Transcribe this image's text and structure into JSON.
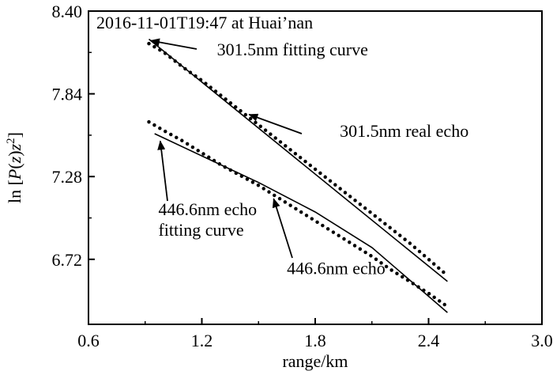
{
  "chart_data": {
    "type": "line",
    "title": "2016-11-01T19:47 at Huai’nan",
    "xlabel": "range/km",
    "ylabel": {
      "prefix": "ln [",
      "p": "P",
      "mid": "(",
      "z1": "z",
      "close": ")",
      "z2": "z",
      "exp": "2",
      "suffix": "]"
    },
    "xlim": [
      0.6,
      3.0
    ],
    "ylim": [
      6.28,
      8.4
    ],
    "xticks": [
      0.6,
      1.2,
      1.8,
      2.4,
      3.0
    ],
    "xtick_labels": [
      "0.6",
      "1.2",
      "1.8",
      "2.4",
      "3.0"
    ],
    "yticks": [
      6.72,
      7.28,
      7.84,
      8.4
    ],
    "ytick_labels": [
      "6.72",
      "7.28",
      "7.84",
      "8.40"
    ],
    "grid": false,
    "series": [
      {
        "name": "301.5nm real echo",
        "style": "dotted",
        "color": "#000000",
        "x": [
          0.92,
          1.0,
          1.1,
          1.2,
          1.3,
          1.4,
          1.5,
          1.6,
          1.7,
          1.8,
          1.9,
          2.0,
          2.1,
          2.2,
          2.3,
          2.4,
          2.5
        ],
        "y": [
          8.18,
          8.12,
          8.02,
          7.93,
          7.83,
          7.73,
          7.63,
          7.53,
          7.43,
          7.33,
          7.23,
          7.13,
          7.03,
          6.93,
          6.83,
          6.72,
          6.61
        ]
      },
      {
        "name": "301.5nm fitting curve",
        "style": "solid",
        "color": "#000000",
        "x": [
          0.92,
          2.5
        ],
        "y": [
          8.21,
          6.57
        ]
      },
      {
        "name": "446.6nm echo",
        "style": "dotted",
        "color": "#000000",
        "x": [
          0.92,
          1.0,
          1.1,
          1.2,
          1.3,
          1.4,
          1.5,
          1.6,
          1.7,
          1.8,
          1.9,
          2.0,
          2.1,
          2.2,
          2.3,
          2.4,
          2.5
        ],
        "y": [
          7.65,
          7.59,
          7.52,
          7.44,
          7.36,
          7.29,
          7.22,
          7.14,
          7.06,
          6.98,
          6.9,
          6.82,
          6.74,
          6.65,
          6.57,
          6.49,
          6.4
        ]
      },
      {
        "name": "446.6nm echo fitting curve",
        "style": "solid",
        "color": "#000000",
        "x": [
          0.95,
          1.2,
          1.5,
          1.8,
          2.1,
          2.5
        ],
        "y": [
          7.57,
          7.42,
          7.24,
          7.04,
          6.8,
          6.36
        ]
      }
    ],
    "annotations": [
      {
        "id": "ann-301-fit",
        "lines": [
          "301.5nm fitting curve"
        ],
        "text_x": 1.28,
        "text_y": 8.1,
        "arrow_to": [
          0.93,
          8.2
        ]
      },
      {
        "id": "ann-301-real",
        "lines": [
          "301.5nm real echo"
        ],
        "text_x": 1.93,
        "text_y": 7.55,
        "arrow_to": [
          1.45,
          7.7
        ]
      },
      {
        "id": "ann-446-fit",
        "lines": [
          "446.6nm echo",
          "fitting curve"
        ],
        "text_x": 0.97,
        "text_y": 7.02,
        "arrow_to": [
          0.98,
          7.52
        ]
      },
      {
        "id": "ann-446-echo",
        "lines": [
          "446.6nm echo"
        ],
        "text_x": 1.65,
        "text_y": 6.62,
        "arrow_to": [
          1.58,
          7.13
        ]
      }
    ]
  }
}
